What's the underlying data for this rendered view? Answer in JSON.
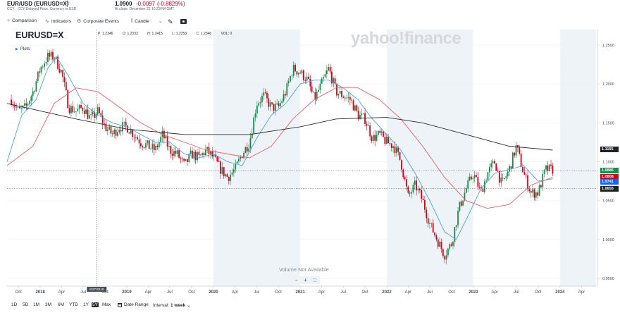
{
  "header": {
    "ticker_title": "EUR/USD (EURUSD=X)",
    "subtitle": "CCY · CCY Delayed Price. Currency in USD",
    "price": "1.0900",
    "change": "-0.0097",
    "change_pct": "(-0.8829%)",
    "asof": "At close: December 25 10:25PM GMT"
  },
  "toolbar": {
    "comparison": "Comparison",
    "indicators": "Indicators",
    "corporate_events": "Corporate Events",
    "chart_type": "Candle"
  },
  "chart_header": {
    "symbol": "EURUSD=X",
    "plots": "Plots",
    "ohlc": {
      "open": "O: 1.2333",
      "high": "H: 1.2415",
      "low": "L: 1.2253",
      "close": "C: 1.2346",
      "price": "P: 1.2346",
      "vol": "VOL: 0"
    },
    "watermark": "yahoo!finance",
    "volume_na": "Volume Not Available",
    "zoom": {
      "minus": "−",
      "plus": "+",
      "reset": "⬚"
    },
    "crosshair_date": "8/27/2018"
  },
  "price_tags": [
    {
      "value": "1.1155",
      "color": "#1d2228"
    },
    {
      "value": "1.0886",
      "color": "#1a8a4c"
    },
    {
      "value": "1.0808",
      "color": "#d0021b"
    },
    {
      "value": "1.0741",
      "color": "#0f69ff"
    },
    {
      "value": "1.0655",
      "color": "#1d2228"
    }
  ],
  "bottom_bar": {
    "ranges": [
      "1D",
      "5D",
      "1M",
      "3M",
      "6M",
      "YTD",
      "1Y",
      "5Y",
      "Max"
    ],
    "active_range": "5Y",
    "date_range": "Date Range",
    "interval_label": "Interval:",
    "interval_value": "1 week"
  },
  "chart_data": {
    "type": "line",
    "title": "EURUSD=X",
    "x_tick_labels": [
      "Oct",
      "2018",
      "Apr",
      "Jul",
      "Oct",
      "2019",
      "Apr",
      "Jul",
      "Oct",
      "2020",
      "Apr",
      "Jul",
      "Oct",
      "2021",
      "Apr",
      "Jul",
      "Oct",
      "2022",
      "Apr",
      "Jul",
      "Oct",
      "2023",
      "Apr",
      "Jul",
      "Oct",
      "2024",
      "Apr"
    ],
    "y_ticks": [
      "1.2500",
      "1.2000",
      "1.1500",
      "1.1000",
      "1.0500",
      "1.0000",
      "0.9500"
    ],
    "ylim": [
      0.94,
      1.27
    ],
    "xlim": [
      "2017-08-14",
      "2024-06-01"
    ],
    "candle_interval": "weekly",
    "close_series": [
      {
        "date": "2017-09-01",
        "value": 1.18
      },
      {
        "date": "2017-10-01",
        "value": 1.165
      },
      {
        "date": "2017-11-01",
        "value": 1.17
      },
      {
        "date": "2017-12-01",
        "value": 1.19
      },
      {
        "date": "2018-01-01",
        "value": 1.22
      },
      {
        "date": "2018-02-01",
        "value": 1.235
      },
      {
        "date": "2018-03-01",
        "value": 1.235
      },
      {
        "date": "2018-04-01",
        "value": 1.215
      },
      {
        "date": "2018-05-01",
        "value": 1.17
      },
      {
        "date": "2018-06-01",
        "value": 1.165
      },
      {
        "date": "2018-07-01",
        "value": 1.17
      },
      {
        "date": "2018-08-01",
        "value": 1.155
      },
      {
        "date": "2018-09-01",
        "value": 1.165
      },
      {
        "date": "2018-10-01",
        "value": 1.145
      },
      {
        "date": "2018-11-01",
        "value": 1.135
      },
      {
        "date": "2018-12-01",
        "value": 1.145
      },
      {
        "date": "2019-01-01",
        "value": 1.145
      },
      {
        "date": "2019-02-01",
        "value": 1.135
      },
      {
        "date": "2019-03-01",
        "value": 1.125
      },
      {
        "date": "2019-04-01",
        "value": 1.12
      },
      {
        "date": "2019-05-01",
        "value": 1.115
      },
      {
        "date": "2019-06-01",
        "value": 1.135
      },
      {
        "date": "2019-07-01",
        "value": 1.115
      },
      {
        "date": "2019-08-01",
        "value": 1.11
      },
      {
        "date": "2019-09-01",
        "value": 1.095
      },
      {
        "date": "2019-10-01",
        "value": 1.11
      },
      {
        "date": "2019-11-01",
        "value": 1.105
      },
      {
        "date": "2019-12-01",
        "value": 1.115
      },
      {
        "date": "2020-01-01",
        "value": 1.105
      },
      {
        "date": "2020-02-01",
        "value": 1.09
      },
      {
        "date": "2020-03-01",
        "value": 1.08
      },
      {
        "date": "2020-04-01",
        "value": 1.09
      },
      {
        "date": "2020-05-01",
        "value": 1.11
      },
      {
        "date": "2020-06-01",
        "value": 1.125
      },
      {
        "date": "2020-07-01",
        "value": 1.175
      },
      {
        "date": "2020-08-01",
        "value": 1.185
      },
      {
        "date": "2020-09-01",
        "value": 1.17
      },
      {
        "date": "2020-10-01",
        "value": 1.17
      },
      {
        "date": "2020-11-01",
        "value": 1.19
      },
      {
        "date": "2020-12-01",
        "value": 1.22
      },
      {
        "date": "2021-01-01",
        "value": 1.215
      },
      {
        "date": "2021-02-01",
        "value": 1.205
      },
      {
        "date": "2021-03-01",
        "value": 1.18
      },
      {
        "date": "2021-04-01",
        "value": 1.2
      },
      {
        "date": "2021-05-01",
        "value": 1.22
      },
      {
        "date": "2021-06-01",
        "value": 1.19
      },
      {
        "date": "2021-07-01",
        "value": 1.185
      },
      {
        "date": "2021-08-01",
        "value": 1.18
      },
      {
        "date": "2021-09-01",
        "value": 1.16
      },
      {
        "date": "2021-10-01",
        "value": 1.155
      },
      {
        "date": "2021-11-01",
        "value": 1.13
      },
      {
        "date": "2021-12-01",
        "value": 1.135
      },
      {
        "date": "2022-01-01",
        "value": 1.125
      },
      {
        "date": "2022-02-01",
        "value": 1.12
      },
      {
        "date": "2022-03-01",
        "value": 1.1
      },
      {
        "date": "2022-04-01",
        "value": 1.055
      },
      {
        "date": "2022-05-01",
        "value": 1.07
      },
      {
        "date": "2022-06-01",
        "value": 1.05
      },
      {
        "date": "2022-07-01",
        "value": 1.02
      },
      {
        "date": "2022-08-01",
        "value": 1.0
      },
      {
        "date": "2022-09-01",
        "value": 0.98
      },
      {
        "date": "2022-10-01",
        "value": 0.995
      },
      {
        "date": "2022-11-01",
        "value": 1.04
      },
      {
        "date": "2022-12-01",
        "value": 1.065
      },
      {
        "date": "2023-01-01",
        "value": 1.085
      },
      {
        "date": "2023-02-01",
        "value": 1.06
      },
      {
        "date": "2023-03-01",
        "value": 1.085
      },
      {
        "date": "2023-04-01",
        "value": 1.1
      },
      {
        "date": "2023-05-01",
        "value": 1.07
      },
      {
        "date": "2023-06-01",
        "value": 1.09
      },
      {
        "date": "2023-07-01",
        "value": 1.12
      },
      {
        "date": "2023-08-01",
        "value": 1.085
      },
      {
        "date": "2023-09-01",
        "value": 1.06
      },
      {
        "date": "2023-10-01",
        "value": 1.06
      },
      {
        "date": "2023-11-01",
        "value": 1.09
      },
      {
        "date": "2023-12-01",
        "value": 1.09
      }
    ],
    "series": [
      {
        "name": "",
        "color": "#4aa3df",
        "values": [
          [
            "2017-08-14",
            1.1
          ],
          [
            "2017-10-15",
            1.16
          ],
          [
            "2017-12-15",
            1.18
          ],
          [
            "2018-02-01",
            1.22
          ],
          [
            "2018-03-10",
            1.235
          ],
          [
            "2018-05-01",
            1.21
          ],
          [
            "2018-07-01",
            1.175
          ],
          [
            "2018-09-01",
            1.16
          ],
          [
            "2018-11-01",
            1.15
          ],
          [
            "2019-01-01",
            1.145
          ],
          [
            "2019-03-01",
            1.135
          ],
          [
            "2019-05-01",
            1.125
          ],
          [
            "2019-07-01",
            1.125
          ],
          [
            "2019-09-01",
            1.11
          ],
          [
            "2019-11-01",
            1.105
          ],
          [
            "2020-01-01",
            1.11
          ],
          [
            "2020-03-01",
            1.1
          ],
          [
            "2020-05-01",
            1.095
          ],
          [
            "2020-07-01",
            1.13
          ],
          [
            "2020-09-01",
            1.16
          ],
          [
            "2020-11-01",
            1.175
          ],
          [
            "2021-01-01",
            1.2
          ],
          [
            "2021-03-01",
            1.205
          ],
          [
            "2021-05-01",
            1.205
          ],
          [
            "2021-07-01",
            1.195
          ],
          [
            "2021-09-01",
            1.18
          ],
          [
            "2021-11-01",
            1.155
          ],
          [
            "2022-01-01",
            1.135
          ],
          [
            "2022-03-01",
            1.115
          ],
          [
            "2022-05-01",
            1.085
          ],
          [
            "2022-07-01",
            1.05
          ],
          [
            "2022-09-01",
            1.01
          ],
          [
            "2022-10-20",
            1.0
          ],
          [
            "2022-12-01",
            1.025
          ],
          [
            "2023-02-01",
            1.065
          ],
          [
            "2023-04-01",
            1.085
          ],
          [
            "2023-06-01",
            1.09
          ],
          [
            "2023-08-01",
            1.095
          ],
          [
            "2023-10-01",
            1.075
          ],
          [
            "2023-12-01",
            1.078
          ]
        ]
      },
      {
        "name": "",
        "color": "#e8616b",
        "values": [
          [
            "2017-08-14",
            1.095
          ],
          [
            "2017-12-01",
            1.12
          ],
          [
            "2018-03-01",
            1.175
          ],
          [
            "2018-06-01",
            1.195
          ],
          [
            "2018-09-01",
            1.19
          ],
          [
            "2018-12-01",
            1.17
          ],
          [
            "2019-03-01",
            1.15
          ],
          [
            "2019-06-01",
            1.135
          ],
          [
            "2019-09-01",
            1.125
          ],
          [
            "2019-12-01",
            1.115
          ],
          [
            "2020-03-01",
            1.11
          ],
          [
            "2020-06-01",
            1.105
          ],
          [
            "2020-09-01",
            1.12
          ],
          [
            "2020-12-01",
            1.155
          ],
          [
            "2021-03-01",
            1.18
          ],
          [
            "2021-06-01",
            1.195
          ],
          [
            "2021-09-01",
            1.195
          ],
          [
            "2021-12-01",
            1.18
          ],
          [
            "2022-03-01",
            1.155
          ],
          [
            "2022-06-01",
            1.12
          ],
          [
            "2022-09-01",
            1.08
          ],
          [
            "2022-12-01",
            1.05
          ],
          [
            "2023-03-01",
            1.04
          ],
          [
            "2023-06-01",
            1.045
          ],
          [
            "2023-09-01",
            1.07
          ],
          [
            "2023-12-01",
            1.08
          ]
        ]
      },
      {
        "name": "",
        "color": "#2b2b2b",
        "values": [
          [
            "2017-08-14",
            1.175
          ],
          [
            "2018-06-01",
            1.155
          ],
          [
            "2019-01-01",
            1.142
          ],
          [
            "2019-09-01",
            1.135
          ],
          [
            "2020-06-01",
            1.135
          ],
          [
            "2021-01-01",
            1.145
          ],
          [
            "2021-06-01",
            1.155
          ],
          [
            "2022-01-01",
            1.157
          ],
          [
            "2022-06-01",
            1.15
          ],
          [
            "2022-12-01",
            1.135
          ],
          [
            "2023-06-01",
            1.12
          ],
          [
            "2023-12-01",
            1.115
          ]
        ]
      }
    ],
    "horizontal_levels": [
      1.0886,
      1.0655
    ],
    "grid": true,
    "legend": "none"
  }
}
